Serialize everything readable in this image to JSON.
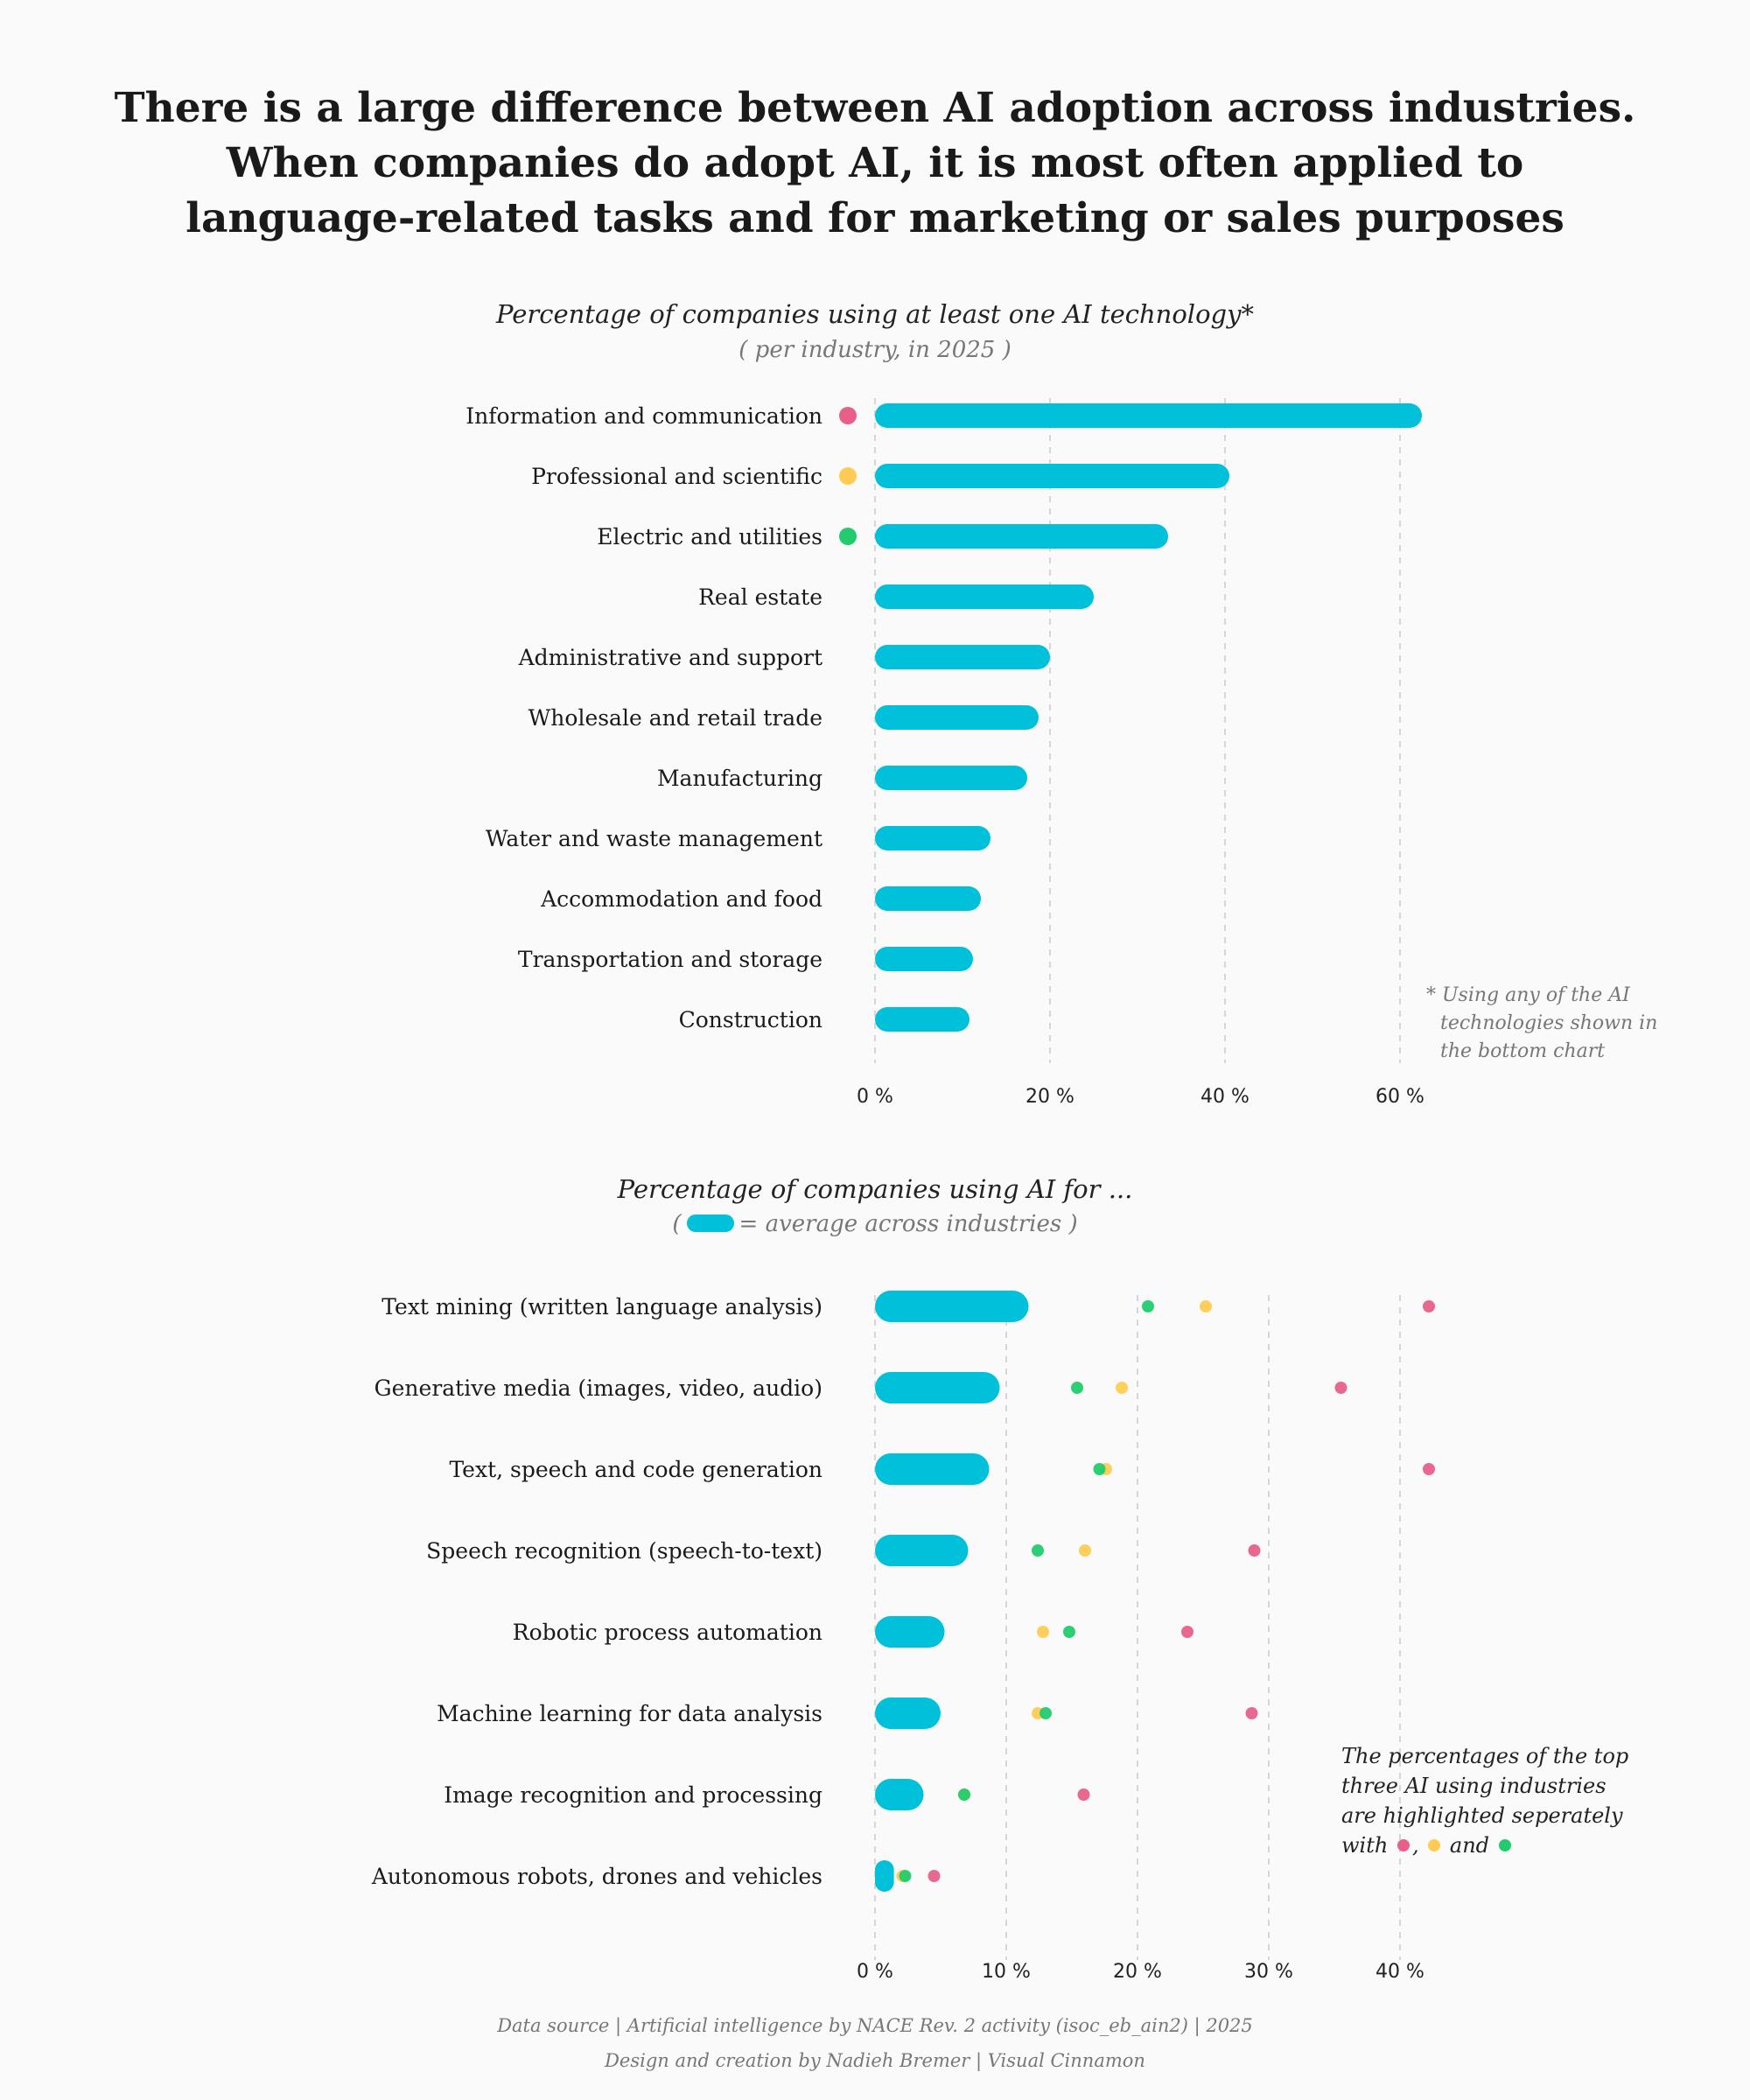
{
  "page": {
    "title_lines": [
      "There is a large difference between AI adoption across industries.",
      "When companies do adopt AI, it is most often applied to",
      "language-related tasks and for marketing or sales purposes"
    ],
    "footer_source": "Data source | Artificial intelligence by NACE Rev. 2 activity (isoc_eb_ain2) | 2025",
    "footer_credit": "Design and creation by Nadieh Bremer | Visual Cinnamon"
  },
  "colors": {
    "bar": "#00c1d9",
    "top1": "#e8608a",
    "top2": "#ffcb52",
    "top3": "#22cc6e",
    "overlap": "#1e9e22",
    "grid": "#d6d6d6"
  },
  "chart_data": [
    {
      "type": "bar",
      "orientation": "horizontal",
      "title": "Percentage of companies using at least one AI technology*",
      "subtitle": "( per industry, in 2025 )",
      "note": [
        "* Using any of the AI",
        "technologies shown in",
        "the bottom chart"
      ],
      "categories": [
        "Information and communication",
        "Professional and scientific",
        "Electric and utilities",
        "Real estate",
        "Administrative and support",
        "Wholesale and retail trade",
        "Manufacturing",
        "Water and waste management",
        "Accommodation and food",
        "Transportation and storage",
        "Construction"
      ],
      "values": [
        62.5,
        40.5,
        33.5,
        25,
        20,
        18.7,
        17.4,
        13.2,
        12.1,
        11.2,
        10.8
      ],
      "highlight": [
        "top1",
        "top2",
        "top3",
        null,
        null,
        null,
        null,
        null,
        null,
        null,
        null
      ],
      "xlim": [
        0,
        60
      ],
      "xticks": [
        0,
        20,
        40,
        60
      ],
      "xtick_labels": [
        "0 %",
        "20 %",
        "40 %",
        "60 %"
      ],
      "grid": "vertical dashed"
    },
    {
      "type": "dot-bar",
      "orientation": "horizontal",
      "title": "Percentage of companies using AI for ...",
      "subtitle_prefix": "(",
      "subtitle_suffix": "= average across industries )",
      "note_lines": [
        "The percentages of the top",
        "three AI using industries",
        "are highlighted seperately"
      ],
      "note_with": "with",
      "note_comma": ",",
      "note_and": "and",
      "categories": [
        "Text mining (written language analysis)",
        "Generative media (images, video, audio)",
        "Text, speech and code generation",
        "Speech recognition (speech-to-text)",
        "Robotic process automation",
        "Machine learning for data analysis",
        "Image recognition and processing",
        "Autonomous robots, drones and vehicles"
      ],
      "average": [
        11.7,
        9.5,
        8.7,
        7.1,
        5.3,
        5.0,
        3.7,
        1.4
      ],
      "series": [
        {
          "key": "top1",
          "values": [
            42.2,
            35.5,
            42.2,
            28.9,
            23.8,
            28.7,
            15.9,
            4.5
          ]
        },
        {
          "key": "top2",
          "values": [
            25.2,
            18.8,
            17.6,
            16.0,
            12.8,
            12.4,
            6.8,
            2.1
          ]
        },
        {
          "key": "top3",
          "values": [
            20.8,
            15.4,
            17.1,
            12.4,
            14.8,
            13.0,
            6.8,
            2.3
          ]
        }
      ],
      "xlim": [
        0,
        40
      ],
      "xticks": [
        0,
        10,
        20,
        30,
        40
      ],
      "xtick_labels": [
        "0 %",
        "10 %",
        "20 %",
        "30 %",
        "40 %"
      ],
      "grid": "vertical dashed"
    }
  ]
}
